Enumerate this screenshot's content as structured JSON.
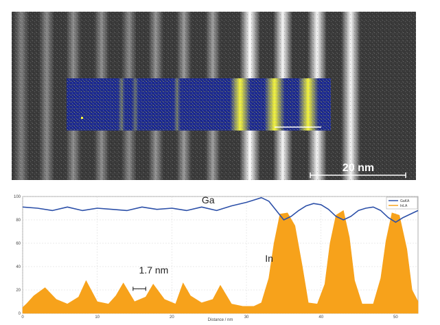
{
  "image": {
    "scale_bar_text": "20 nm",
    "colors": {
      "map_bg": "#1d2a8c",
      "indium_map": "#ffff3a",
      "scale_bar": "#ffffff"
    },
    "bright_band_strength": [
      0.35,
      0.4,
      0.42,
      0.42,
      0.4,
      0.45,
      0.48,
      0.5,
      1.0,
      0.95,
      0.95,
      0.95
    ]
  },
  "chart_data": {
    "type": "line",
    "title": "",
    "xlabel": "Distance / nm",
    "ylabel": "",
    "xlim": [
      0,
      53
    ],
    "ylim": [
      0,
      100
    ],
    "xticks": [
      0,
      10,
      20,
      30,
      40,
      50
    ],
    "yticks": [
      0,
      20,
      40,
      60,
      80,
      100
    ],
    "grid": true,
    "legend_position": "top-right",
    "series": [
      {
        "name": "GaKA",
        "color": "#2b4fa8",
        "style": "line",
        "x": [
          0,
          2,
          4,
          6,
          8,
          10,
          12,
          14,
          16,
          18,
          20,
          22,
          24,
          26,
          28,
          30,
          31,
          32,
          33,
          34,
          35,
          36,
          37,
          38,
          39,
          40,
          41,
          42,
          43,
          44,
          45,
          46,
          47,
          48,
          49,
          50,
          51,
          52,
          53
        ],
        "values": [
          91,
          90,
          88,
          91,
          88,
          90,
          89,
          88,
          91,
          89,
          90,
          88,
          91,
          88,
          92,
          95,
          97,
          99,
          96,
          88,
          80,
          83,
          88,
          92,
          94,
          93,
          89,
          83,
          80,
          83,
          88,
          90,
          91,
          88,
          82,
          78,
          82,
          85,
          88
        ]
      },
      {
        "name": "InLA",
        "color": "#f7a21b",
        "style": "area",
        "x": [
          0,
          0.5,
          1.5,
          3,
          4.5,
          6,
          7.5,
          8.5,
          10,
          11.5,
          12.5,
          13.5,
          15,
          16.5,
          17.5,
          19,
          20.5,
          21.5,
          22.5,
          24,
          25.5,
          26.5,
          28,
          29.5,
          31,
          32,
          33,
          33.7,
          34.5,
          35.5,
          36.5,
          37.5,
          38.3,
          39.5,
          40.5,
          41.2,
          42,
          43,
          43.8,
          44.5,
          45.5,
          47,
          48,
          48.7,
          49.5,
          50.5,
          51.5,
          52.2,
          53
        ],
        "values": [
          5,
          8,
          15,
          22,
          12,
          8,
          14,
          28,
          10,
          8,
          15,
          26,
          10,
          14,
          25,
          12,
          8,
          26,
          15,
          9,
          12,
          24,
          8,
          6,
          6,
          9,
          30,
          60,
          85,
          86,
          75,
          40,
          9,
          8,
          25,
          60,
          84,
          88,
          65,
          28,
          8,
          8,
          30,
          62,
          86,
          84,
          55,
          20,
          10
        ]
      }
    ],
    "annotations": [
      {
        "text": "Ga",
        "x": 24,
        "y": 94
      },
      {
        "text": "In",
        "x": 32.5,
        "y": 44
      },
      {
        "text": "1.7 nm",
        "x": 15.6,
        "y": 34
      }
    ],
    "scale_marker": {
      "x_start": 14.8,
      "x_end": 16.5,
      "y": 21
    }
  }
}
